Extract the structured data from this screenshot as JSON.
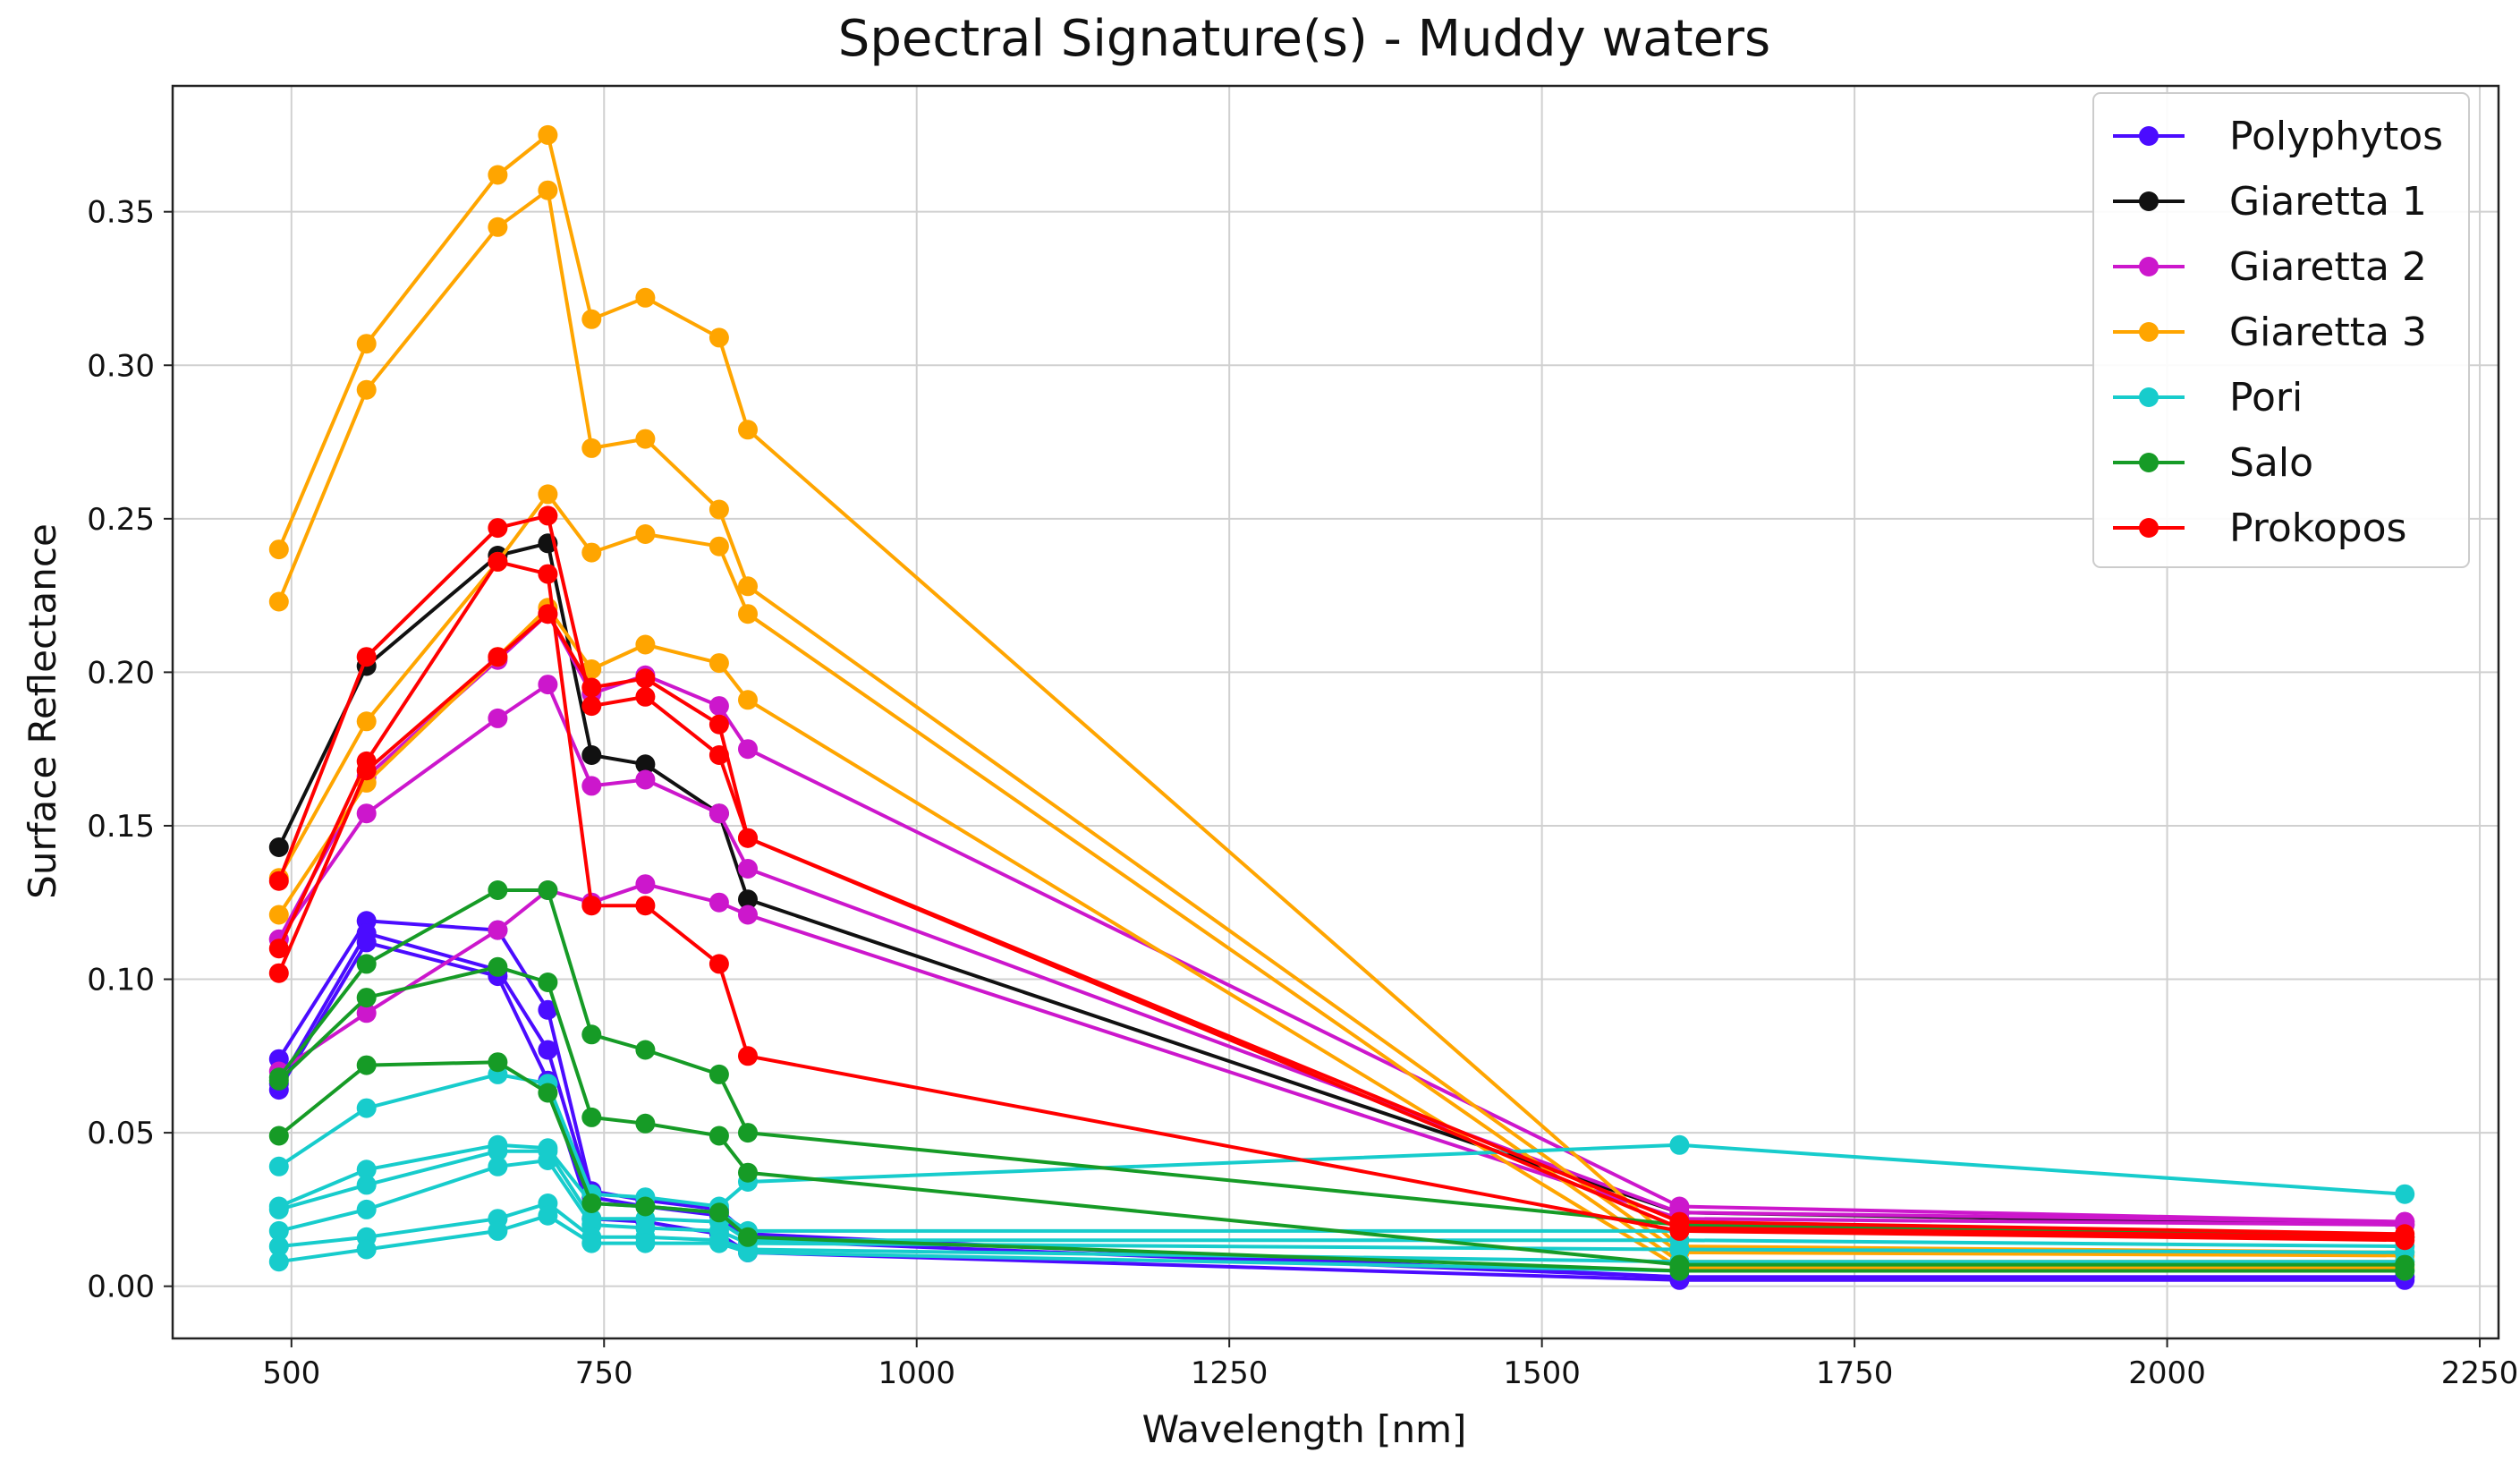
{
  "chart_data": {
    "type": "line",
    "title": "Spectral Signature(s) - Muddy waters",
    "xlabel": "Wavelength [nm]",
    "ylabel": "Surface Reflectance",
    "xlim": [
      405,
      2265
    ],
    "ylim": [
      -0.017,
      0.391
    ],
    "xticks": [
      500,
      750,
      1000,
      1250,
      1500,
      1750,
      2000,
      2250
    ],
    "yticks": [
      0.0,
      0.05,
      0.1,
      0.15,
      0.2,
      0.25,
      0.3,
      0.35
    ],
    "xtick_labels": [
      "500",
      "750",
      "1000",
      "1250",
      "1500",
      "1750",
      "2000",
      "2250"
    ],
    "ytick_labels": [
      "0.00",
      "0.05",
      "0.10",
      "0.15",
      "0.20",
      "0.25",
      "0.30",
      "0.35"
    ],
    "grid": true,
    "legend_position": "top-right",
    "x": [
      490,
      560,
      665,
      705,
      740,
      783,
      842,
      865,
      1610,
      2190
    ],
    "series": [
      {
        "name": "Polyphytos",
        "color": "#4b0cff",
        "draw_order": 0,
        "values": [
          0.074,
          0.119,
          0.116,
          0.09,
          0.031,
          0.028,
          0.025,
          0.017,
          0.003,
          0.003
        ]
      },
      {
        "name": "Polyphytos",
        "color": "#4b0cff",
        "draw_order": 0,
        "values": [
          0.066,
          0.115,
          0.103,
          0.077,
          0.029,
          0.026,
          0.023,
          0.015,
          0.003,
          0.003
        ]
      },
      {
        "name": "Polyphytos",
        "color": "#4b0cff",
        "draw_order": 0,
        "values": [
          0.064,
          0.112,
          0.101,
          0.067,
          0.022,
          0.021,
          0.017,
          0.011,
          0.002,
          0.002
        ]
      },
      {
        "name": "Giaretta 1",
        "color": "#111111",
        "draw_order": 1,
        "values": [
          0.143,
          0.202,
          0.238,
          0.242,
          0.173,
          0.17,
          0.154,
          0.126,
          0.024,
          0.02
        ]
      },
      {
        "name": "Giaretta 2",
        "color": "#cc17cc",
        "draw_order": 2,
        "values": [
          0.113,
          0.166,
          0.204,
          0.219,
          0.193,
          0.199,
          0.189,
          0.175,
          0.026,
          0.021
        ]
      },
      {
        "name": "Giaretta 2",
        "color": "#cc17cc",
        "draw_order": 2,
        "values": [
          0.113,
          0.154,
          0.185,
          0.196,
          0.163,
          0.165,
          0.154,
          0.136,
          0.024,
          0.021
        ]
      },
      {
        "name": "Giaretta 2",
        "color": "#cc17cc",
        "draw_order": 2,
        "values": [
          0.07,
          0.089,
          0.116,
          0.129,
          0.125,
          0.131,
          0.125,
          0.121,
          0.022,
          0.02
        ]
      },
      {
        "name": "Giaretta 3",
        "color": "#ffa500",
        "draw_order": 3,
        "values": [
          0.24,
          0.307,
          0.362,
          0.375,
          0.315,
          0.322,
          0.309,
          0.279,
          0.013,
          0.011
        ]
      },
      {
        "name": "Giaretta 3",
        "color": "#ffa500",
        "draw_order": 3,
        "values": [
          0.223,
          0.292,
          0.345,
          0.357,
          0.273,
          0.276,
          0.253,
          0.228,
          0.011,
          0.01
        ]
      },
      {
        "name": "Giaretta 3",
        "color": "#ffa500",
        "draw_order": 3,
        "values": [
          0.133,
          0.184,
          0.236,
          0.258,
          0.239,
          0.245,
          0.241,
          0.219,
          0.008,
          0.008
        ]
      },
      {
        "name": "Giaretta 3",
        "color": "#ffa500",
        "draw_order": 3,
        "values": [
          0.121,
          0.164,
          0.205,
          0.221,
          0.201,
          0.209,
          0.203,
          0.191,
          0.006,
          0.006
        ]
      },
      {
        "name": "Pori",
        "color": "#17cccc",
        "draw_order": 4,
        "values": [
          0.039,
          0.058,
          0.069,
          0.066,
          0.03,
          0.029,
          0.026,
          0.034,
          0.046,
          0.03
        ]
      },
      {
        "name": "Pori",
        "color": "#17cccc",
        "draw_order": 4,
        "values": [
          0.026,
          0.038,
          0.046,
          0.045,
          0.027,
          0.026,
          0.024,
          0.018,
          0.018,
          0.016
        ]
      },
      {
        "name": "Pori",
        "color": "#17cccc",
        "draw_order": 4,
        "values": [
          0.025,
          0.033,
          0.044,
          0.044,
          0.022,
          0.022,
          0.021,
          0.015,
          0.015,
          0.013
        ]
      },
      {
        "name": "Pori",
        "color": "#17cccc",
        "draw_order": 4,
        "values": [
          0.018,
          0.025,
          0.039,
          0.041,
          0.02,
          0.019,
          0.018,
          0.014,
          0.012,
          0.011
        ]
      },
      {
        "name": "Pori",
        "color": "#17cccc",
        "draw_order": 4,
        "values": [
          0.013,
          0.016,
          0.022,
          0.027,
          0.016,
          0.016,
          0.015,
          0.012,
          0.008,
          0.008
        ]
      },
      {
        "name": "Pori",
        "color": "#17cccc",
        "draw_order": 4,
        "values": [
          0.008,
          0.012,
          0.018,
          0.023,
          0.014,
          0.014,
          0.014,
          0.011,
          0.005,
          0.005
        ]
      },
      {
        "name": "Salo",
        "color": "#169b26",
        "draw_order": 5,
        "values": [
          0.068,
          0.105,
          0.129,
          0.129,
          0.082,
          0.077,
          0.069,
          0.05,
          0.02,
          0.016
        ]
      },
      {
        "name": "Salo",
        "color": "#169b26",
        "draw_order": 5,
        "values": [
          0.067,
          0.094,
          0.104,
          0.099,
          0.055,
          0.053,
          0.049,
          0.037,
          0.007,
          0.007
        ]
      },
      {
        "name": "Salo",
        "color": "#169b26",
        "draw_order": 5,
        "values": [
          0.049,
          0.072,
          0.073,
          0.063,
          0.027,
          0.026,
          0.024,
          0.016,
          0.005,
          0.005
        ]
      },
      {
        "name": "Prokopos",
        "color": "#ff0000",
        "draw_order": 6,
        "values": [
          0.132,
          0.205,
          0.247,
          0.251,
          0.189,
          0.192,
          0.173,
          0.146,
          0.021,
          0.017
        ]
      },
      {
        "name": "Prokopos",
        "color": "#ff0000",
        "draw_order": 6,
        "values": [
          0.11,
          0.171,
          0.236,
          0.232,
          0.124,
          0.124,
          0.105,
          0.075,
          0.018,
          0.015
        ]
      },
      {
        "name": "Prokopos",
        "color": "#ff0000",
        "draw_order": 6,
        "values": [
          0.102,
          0.168,
          0.205,
          0.219,
          0.195,
          0.198,
          0.183,
          0.146,
          0.019,
          0.016
        ]
      }
    ],
    "legend": [
      {
        "label": "Polyphytos",
        "color": "#4b0cff"
      },
      {
        "label": "Giaretta 1",
        "color": "#111111"
      },
      {
        "label": "Giaretta 2",
        "color": "#cc17cc"
      },
      {
        "label": "Giaretta 3",
        "color": "#ffa500"
      },
      {
        "label": "Pori",
        "color": "#17cccc"
      },
      {
        "label": "Salo",
        "color": "#169b26"
      },
      {
        "label": "Prokopos",
        "color": "#ff0000"
      }
    ]
  }
}
